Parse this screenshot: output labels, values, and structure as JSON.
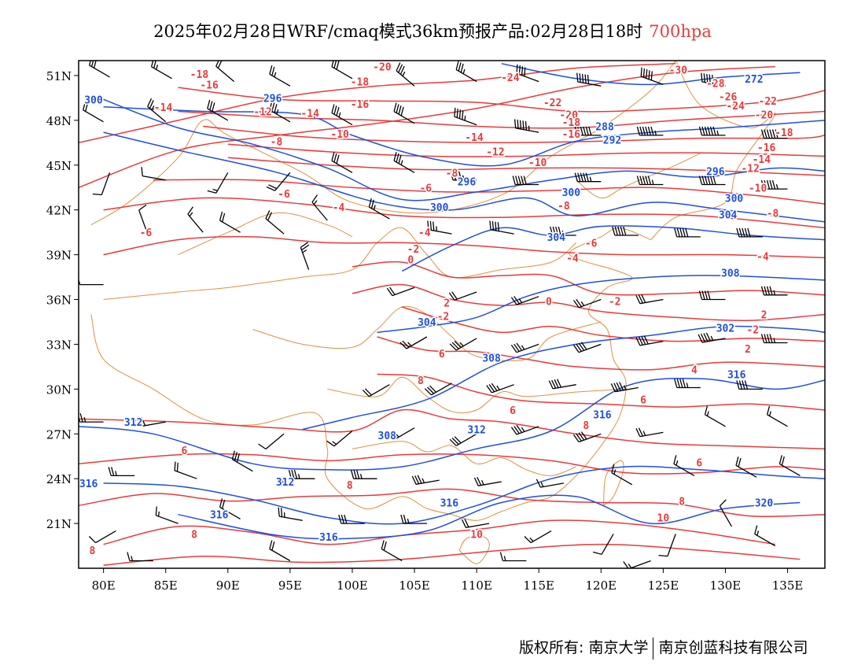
{
  "title": {
    "text": "2025年02月28日WRF/cmaq模式36km预报产品:02月28日18时",
    "level": "700hpa"
  },
  "axes": {
    "lat_labels": [
      "51N",
      "48N",
      "45N",
      "42N",
      "39N",
      "36N",
      "33N",
      "30N",
      "27N",
      "24N",
      "21N"
    ],
    "lat_values": [
      51,
      48,
      45,
      42,
      39,
      36,
      33,
      30,
      27,
      24,
      21
    ],
    "lon_labels": [
      "80E",
      "85E",
      "90E",
      "95E",
      "100E",
      "105E",
      "110E",
      "115E",
      "120E",
      "125E",
      "130E",
      "135E"
    ],
    "lon_values": [
      80,
      85,
      90,
      95,
      100,
      105,
      110,
      115,
      120,
      125,
      130,
      135
    ],
    "lon_range": [
      78,
      138
    ],
    "lat_range": [
      18,
      52
    ]
  },
  "colors": {
    "temperature": "#e83a3a",
    "geopotential_height": "#1f4fe0",
    "boundary": "#e09040",
    "wind": "#000000"
  },
  "chart_data": {
    "type": "contour-map",
    "temperature_contours_C": [
      {
        "label": "-30",
        "lon": 126.2,
        "lat": 51.4
      },
      {
        "label": "-28",
        "lon": 129.2,
        "lat": 50.5
      },
      {
        "label": "-26",
        "lon": 130.2,
        "lat": 49.6
      },
      {
        "label": "-24",
        "lon": 112.7,
        "lat": 50.9
      },
      {
        "label": "-24",
        "lon": 130.8,
        "lat": 49.0
      },
      {
        "label": "-22",
        "lon": 116.1,
        "lat": 49.2
      },
      {
        "label": "-22",
        "lon": 133.4,
        "lat": 49.3
      },
      {
        "label": "-20",
        "lon": 102.4,
        "lat": 51.6
      },
      {
        "label": "-20",
        "lon": 117.4,
        "lat": 48.4
      },
      {
        "label": "-20",
        "lon": 133.1,
        "lat": 48.4
      },
      {
        "label": "-18",
        "lon": 87.7,
        "lat": 51.1
      },
      {
        "label": "-18",
        "lon": 100.6,
        "lat": 50.6
      },
      {
        "label": "-18",
        "lon": 117.6,
        "lat": 47.9
      },
      {
        "label": "-18",
        "lon": 134.7,
        "lat": 47.2
      },
      {
        "label": "-16",
        "lon": 88.5,
        "lat": 50.4
      },
      {
        "label": "-16",
        "lon": 100.6,
        "lat": 49.1
      },
      {
        "label": "-16",
        "lon": 117.6,
        "lat": 47.1
      },
      {
        "label": "-16",
        "lon": 133.3,
        "lat": 46.2
      },
      {
        "label": "-14",
        "lon": 84.8,
        "lat": 48.9
      },
      {
        "label": "-14",
        "lon": 96.6,
        "lat": 48.5
      },
      {
        "label": "-14",
        "lon": 109.8,
        "lat": 46.9
      },
      {
        "label": "-14",
        "lon": 132.9,
        "lat": 45.4
      },
      {
        "label": "-12",
        "lon": 92.8,
        "lat": 48.6
      },
      {
        "label": "-12",
        "lon": 111.5,
        "lat": 45.9
      },
      {
        "label": "-12",
        "lon": 132.0,
        "lat": 44.8
      },
      {
        "label": "-10",
        "lon": 99.0,
        "lat": 47.1
      },
      {
        "label": "-10",
        "lon": 114.9,
        "lat": 45.2
      },
      {
        "label": "-10",
        "lon": 132.6,
        "lat": 43.5
      },
      {
        "label": "-8",
        "lon": 93.9,
        "lat": 46.6
      },
      {
        "label": "-8",
        "lon": 108.0,
        "lat": 44.5
      },
      {
        "label": "-8",
        "lon": 117.0,
        "lat": 42.3
      },
      {
        "label": "-8",
        "lon": 133.8,
        "lat": 41.8
      },
      {
        "label": "-6",
        "lon": 94.5,
        "lat": 43.1
      },
      {
        "label": "-6",
        "lon": 105.9,
        "lat": 43.5
      },
      {
        "label": "-6",
        "lon": 83.4,
        "lat": 40.5
      },
      {
        "label": "-6",
        "lon": 119.2,
        "lat": 39.8
      },
      {
        "label": "-4",
        "lon": 98.9,
        "lat": 42.2
      },
      {
        "label": "-4",
        "lon": 105.8,
        "lat": 40.5
      },
      {
        "label": "-4",
        "lon": 117.7,
        "lat": 38.8
      },
      {
        "label": "-4",
        "lon": 133.0,
        "lat": 38.9
      },
      {
        "label": "-2",
        "lon": 104.9,
        "lat": 39.4
      },
      {
        "label": "-2",
        "lon": 107.3,
        "lat": 34.9
      },
      {
        "label": "-2",
        "lon": 121.1,
        "lat": 35.9
      },
      {
        "label": "-2",
        "lon": 132.2,
        "lat": 34.0
      },
      {
        "label": "0",
        "lon": 104.7,
        "lat": 38.7
      },
      {
        "label": "0",
        "lon": 115.8,
        "lat": 35.9
      },
      {
        "label": "2",
        "lon": 107.6,
        "lat": 35.8
      },
      {
        "label": "2",
        "lon": 133.1,
        "lat": 35.0
      },
      {
        "label": "2",
        "lon": 131.8,
        "lat": 32.7
      },
      {
        "label": "4",
        "lon": 127.5,
        "lat": 31.3
      },
      {
        "label": "6",
        "lon": 107.2,
        "lat": 32.4
      },
      {
        "label": "6",
        "lon": 112.9,
        "lat": 28.6
      },
      {
        "label": "6",
        "lon": 123.4,
        "lat": 29.3
      },
      {
        "label": "6",
        "lon": 86.5,
        "lat": 25.9
      },
      {
        "label": "6",
        "lon": 94.3,
        "lat": 23.8
      },
      {
        "label": "6",
        "lon": 127.9,
        "lat": 25.1
      },
      {
        "label": "8",
        "lon": 105.5,
        "lat": 30.6
      },
      {
        "label": "8",
        "lon": 118.8,
        "lat": 27.6
      },
      {
        "label": "8",
        "lon": 99.8,
        "lat": 23.6
      },
      {
        "label": "8",
        "lon": 126.5,
        "lat": 22.5
      },
      {
        "label": "8",
        "lon": 87.3,
        "lat": 20.3
      },
      {
        "label": "8",
        "lon": 79.1,
        "lat": 19.2
      },
      {
        "label": "10",
        "lon": 125.0,
        "lat": 21.4
      },
      {
        "label": "10",
        "lon": 110.0,
        "lat": 20.3
      }
    ],
    "height_contours_dagpm": [
      {
        "label": "272",
        "lon": 132.3,
        "lat": 50.8
      },
      {
        "label": "288",
        "lon": 120.3,
        "lat": 47.6
      },
      {
        "label": "292",
        "lon": 120.9,
        "lat": 46.7
      },
      {
        "label": "296",
        "lon": 93.6,
        "lat": 49.5
      },
      {
        "label": "296",
        "lon": 109.2,
        "lat": 43.9
      },
      {
        "label": "296",
        "lon": 129.2,
        "lat": 44.6
      },
      {
        "label": "300",
        "lon": 79.2,
        "lat": 49.4
      },
      {
        "label": "300",
        "lon": 107.0,
        "lat": 42.2
      },
      {
        "label": "300",
        "lon": 117.6,
        "lat": 43.2
      },
      {
        "label": "300",
        "lon": 130.7,
        "lat": 42.8
      },
      {
        "label": "304",
        "lon": 116.4,
        "lat": 40.2
      },
      {
        "label": "304",
        "lon": 130.2,
        "lat": 41.7
      },
      {
        "label": "304",
        "lon": 106.0,
        "lat": 34.5
      },
      {
        "label": "308",
        "lon": 130.4,
        "lat": 37.8
      },
      {
        "label": "308",
        "lon": 111.2,
        "lat": 32.1
      },
      {
        "label": "308",
        "lon": 102.8,
        "lat": 26.9
      },
      {
        "label": "312",
        "lon": 82.4,
        "lat": 27.8
      },
      {
        "label": "312",
        "lon": 110.0,
        "lat": 27.3
      },
      {
        "label": "312",
        "lon": 94.6,
        "lat": 23.8
      },
      {
        "label": "316",
        "lon": 130.9,
        "lat": 31.0
      },
      {
        "label": "316",
        "lon": 120.1,
        "lat": 28.3
      },
      {
        "label": "316",
        "lon": 107.8,
        "lat": 22.4
      },
      {
        "label": "316",
        "lon": 89.3,
        "lat": 21.6
      },
      {
        "label": "316",
        "lon": 78.8,
        "lat": 23.7
      },
      {
        "label": "316",
        "lon": 98.1,
        "lat": 20.1
      },
      {
        "label": "320",
        "lon": 133.1,
        "lat": 22.4
      },
      {
        "label": "302",
        "lon": 130.0,
        "lat": 34.1
      }
    ],
    "wind_barbs_ms": [
      {
        "lon": 80.5,
        "lat": 50.9,
        "dir": 300,
        "spd": 12
      },
      {
        "lon": 85.5,
        "lat": 50.8,
        "dir": 300,
        "spd": 10
      },
      {
        "lon": 90.5,
        "lat": 50.6,
        "dir": 310,
        "spd": 8
      },
      {
        "lon": 95.0,
        "lat": 50.3,
        "dir": 300,
        "spd": 10
      },
      {
        "lon": 100.0,
        "lat": 50.8,
        "dir": 300,
        "spd": 12
      },
      {
        "lon": 105.0,
        "lat": 50.3,
        "dir": 310,
        "spd": 14
      },
      {
        "lon": 110.0,
        "lat": 50.6,
        "dir": 300,
        "spd": 14
      },
      {
        "lon": 115.0,
        "lat": 50.6,
        "dir": 290,
        "spd": 16
      },
      {
        "lon": 120.0,
        "lat": 50.3,
        "dir": 280,
        "spd": 20
      },
      {
        "lon": 125.0,
        "lat": 50.4,
        "dir": 290,
        "spd": 20
      },
      {
        "lon": 130.0,
        "lat": 50.3,
        "dir": 280,
        "spd": 22
      },
      {
        "lon": 80.0,
        "lat": 47.9,
        "dir": 300,
        "spd": 8
      },
      {
        "lon": 85.0,
        "lat": 47.9,
        "dir": 310,
        "spd": 10
      },
      {
        "lon": 90.0,
        "lat": 48.0,
        "dir": 300,
        "spd": 12
      },
      {
        "lon": 95.0,
        "lat": 47.9,
        "dir": 300,
        "spd": 14
      },
      {
        "lon": 100.0,
        "lat": 47.7,
        "dir": 300,
        "spd": 14
      },
      {
        "lon": 105.0,
        "lat": 47.8,
        "dir": 300,
        "spd": 16
      },
      {
        "lon": 110.0,
        "lat": 47.7,
        "dir": 290,
        "spd": 18
      },
      {
        "lon": 115.0,
        "lat": 47.2,
        "dir": 280,
        "spd": 22
      },
      {
        "lon": 120.0,
        "lat": 47.0,
        "dir": 270,
        "spd": 24
      },
      {
        "lon": 125.0,
        "lat": 47.0,
        "dir": 270,
        "spd": 26
      },
      {
        "lon": 130.0,
        "lat": 47.0,
        "dir": 270,
        "spd": 26
      },
      {
        "lon": 135.0,
        "lat": 46.8,
        "dir": 270,
        "spd": 24
      },
      {
        "lon": 80.5,
        "lat": 44.5,
        "dir": 200,
        "spd": 4
      },
      {
        "lon": 85.0,
        "lat": 44.0,
        "dir": 280,
        "spd": 4
      },
      {
        "lon": 90.0,
        "lat": 44.5,
        "dir": 210,
        "spd": 6
      },
      {
        "lon": 95.0,
        "lat": 44.5,
        "dir": 220,
        "spd": 8
      },
      {
        "lon": 100.0,
        "lat": 44.5,
        "dir": 300,
        "spd": 12
      },
      {
        "lon": 105.0,
        "lat": 44.5,
        "dir": 300,
        "spd": 14
      },
      {
        "lon": 110.0,
        "lat": 44.0,
        "dir": 270,
        "spd": 18
      },
      {
        "lon": 115.0,
        "lat": 43.7,
        "dir": 270,
        "spd": 20
      },
      {
        "lon": 120.0,
        "lat": 43.9,
        "dir": 270,
        "spd": 22
      },
      {
        "lon": 125.0,
        "lat": 43.7,
        "dir": 270,
        "spd": 22
      },
      {
        "lon": 130.0,
        "lat": 43.7,
        "dir": 270,
        "spd": 24
      },
      {
        "lon": 135.0,
        "lat": 43.4,
        "dir": 270,
        "spd": 22
      },
      {
        "lon": 83.5,
        "lat": 40.5,
        "dir": 340,
        "spd": 4
      },
      {
        "lon": 88.0,
        "lat": 40.5,
        "dir": 320,
        "spd": 6
      },
      {
        "lon": 91.0,
        "lat": 40.5,
        "dir": 300,
        "spd": 8
      },
      {
        "lon": 94.5,
        "lat": 40.4,
        "dir": 310,
        "spd": 8
      },
      {
        "lon": 98.0,
        "lat": 41.3,
        "dir": 320,
        "spd": 6
      },
      {
        "lon": 103.0,
        "lat": 41.4,
        "dir": 300,
        "spd": 10
      },
      {
        "lon": 108.0,
        "lat": 40.4,
        "dir": 280,
        "spd": 14
      },
      {
        "lon": 113.0,
        "lat": 40.4,
        "dir": 280,
        "spd": 16
      },
      {
        "lon": 118.0,
        "lat": 40.3,
        "dir": 270,
        "spd": 18
      },
      {
        "lon": 123.0,
        "lat": 40.3,
        "dir": 270,
        "spd": 20
      },
      {
        "lon": 128.0,
        "lat": 40.2,
        "dir": 270,
        "spd": 20
      },
      {
        "lon": 133.0,
        "lat": 40.2,
        "dir": 270,
        "spd": 20
      },
      {
        "lon": 80.0,
        "lat": 37.0,
        "dir": 270,
        "spd": 4
      },
      {
        "lon": 96.5,
        "lat": 38.0,
        "dir": 340,
        "spd": 10
      },
      {
        "lon": 105.0,
        "lat": 36.8,
        "dir": 250,
        "spd": 8
      },
      {
        "lon": 110.0,
        "lat": 36.5,
        "dir": 250,
        "spd": 8
      },
      {
        "lon": 115.0,
        "lat": 36.2,
        "dir": 250,
        "spd": 10
      },
      {
        "lon": 120.0,
        "lat": 36.0,
        "dir": 250,
        "spd": 10
      },
      {
        "lon": 125.0,
        "lat": 36.0,
        "dir": 260,
        "spd": 12
      },
      {
        "lon": 130.0,
        "lat": 36.0,
        "dir": 270,
        "spd": 16
      },
      {
        "lon": 135.0,
        "lat": 36.3,
        "dir": 270,
        "spd": 18
      },
      {
        "lon": 106.0,
        "lat": 33.5,
        "dir": 240,
        "spd": 10
      },
      {
        "lon": 110.0,
        "lat": 33.4,
        "dir": 240,
        "spd": 14
      },
      {
        "lon": 115.0,
        "lat": 33.0,
        "dir": 250,
        "spd": 14
      },
      {
        "lon": 120.0,
        "lat": 33.0,
        "dir": 250,
        "spd": 16
      },
      {
        "lon": 125.0,
        "lat": 33.2,
        "dir": 260,
        "spd": 16
      },
      {
        "lon": 130.0,
        "lat": 33.4,
        "dir": 260,
        "spd": 18
      },
      {
        "lon": 135.0,
        "lat": 33.1,
        "dir": 270,
        "spd": 18
      },
      {
        "lon": 103.0,
        "lat": 30.3,
        "dir": 240,
        "spd": 8
      },
      {
        "lon": 108.0,
        "lat": 30.4,
        "dir": 240,
        "spd": 12
      },
      {
        "lon": 113.0,
        "lat": 30.3,
        "dir": 250,
        "spd": 14
      },
      {
        "lon": 118.0,
        "lat": 30.3,
        "dir": 260,
        "spd": 16
      },
      {
        "lon": 123.0,
        "lat": 30.1,
        "dir": 260,
        "spd": 18
      },
      {
        "lon": 128.0,
        "lat": 30.1,
        "dir": 270,
        "spd": 18
      },
      {
        "lon": 133.0,
        "lat": 30.0,
        "dir": 270,
        "spd": 16
      },
      {
        "lon": 80.0,
        "lat": 27.8,
        "dir": 270,
        "spd": 10
      },
      {
        "lon": 85.0,
        "lat": 27.8,
        "dir": 260,
        "spd": 8
      },
      {
        "lon": 94.5,
        "lat": 27.0,
        "dir": 230,
        "spd": 4
      },
      {
        "lon": 100.0,
        "lat": 27.2,
        "dir": 230,
        "spd": 6
      },
      {
        "lon": 105.0,
        "lat": 27.4,
        "dir": 240,
        "spd": 10
      },
      {
        "lon": 110.0,
        "lat": 27.0,
        "dir": 240,
        "spd": 12
      },
      {
        "lon": 115.0,
        "lat": 27.5,
        "dir": 250,
        "spd": 14
      },
      {
        "lon": 120.0,
        "lat": 27.0,
        "dir": 250,
        "spd": 16
      },
      {
        "lon": 125.0,
        "lat": 27.1,
        "dir": 260,
        "spd": 10
      },
      {
        "lon": 130.0,
        "lat": 27.5,
        "dir": 300,
        "spd": 6
      },
      {
        "lon": 135.0,
        "lat": 27.5,
        "dir": 300,
        "spd": 6
      },
      {
        "lon": 82.5,
        "lat": 24.2,
        "dir": 270,
        "spd": 10
      },
      {
        "lon": 87.5,
        "lat": 24.0,
        "dir": 290,
        "spd": 8
      },
      {
        "lon": 92.0,
        "lat": 24.5,
        "dir": 300,
        "spd": 12
      },
      {
        "lon": 97.0,
        "lat": 24.0,
        "dir": 270,
        "spd": 14
      },
      {
        "lon": 102.0,
        "lat": 24.0,
        "dir": 270,
        "spd": 14
      },
      {
        "lon": 107.0,
        "lat": 23.9,
        "dir": 260,
        "spd": 14
      },
      {
        "lon": 112.0,
        "lat": 23.8,
        "dir": 260,
        "spd": 10
      },
      {
        "lon": 117.0,
        "lat": 23.7,
        "dir": 260,
        "spd": 6
      },
      {
        "lon": 122.5,
        "lat": 23.6,
        "dir": 300,
        "spd": 6
      },
      {
        "lon": 127.5,
        "lat": 24.2,
        "dir": 300,
        "spd": 6
      },
      {
        "lon": 132.5,
        "lat": 24.1,
        "dir": 300,
        "spd": 8
      },
      {
        "lon": 136.0,
        "lat": 24.2,
        "dir": 300,
        "spd": 8
      },
      {
        "lon": 81.0,
        "lat": 20.5,
        "dir": 240,
        "spd": 4
      },
      {
        "lon": 86.0,
        "lat": 21.0,
        "dir": 290,
        "spd": 6
      },
      {
        "lon": 91.0,
        "lat": 21.3,
        "dir": 300,
        "spd": 8
      },
      {
        "lon": 96.0,
        "lat": 21.2,
        "dir": 280,
        "spd": 10
      },
      {
        "lon": 101.0,
        "lat": 21.0,
        "dir": 270,
        "spd": 12
      },
      {
        "lon": 106.0,
        "lat": 21.0,
        "dir": 270,
        "spd": 10
      },
      {
        "lon": 111.0,
        "lat": 21.0,
        "dir": 260,
        "spd": 8
      },
      {
        "lon": 116.0,
        "lat": 20.5,
        "dir": 240,
        "spd": 6
      },
      {
        "lon": 121.0,
        "lat": 20.3,
        "dir": 210,
        "spd": 4
      },
      {
        "lon": 126.0,
        "lat": 20.3,
        "dir": 200,
        "spd": 4
      },
      {
        "lon": 130.5,
        "lat": 20.8,
        "dir": 330,
        "spd": 4
      },
      {
        "lon": 134.0,
        "lat": 19.5,
        "dir": 300,
        "spd": 6
      },
      {
        "lon": 84.0,
        "lat": 18.5,
        "dir": 270,
        "spd": 6
      },
      {
        "lon": 95.0,
        "lat": 18.5,
        "dir": 300,
        "spd": 8
      },
      {
        "lon": 104.0,
        "lat": 18.5,
        "dir": 300,
        "spd": 8
      },
      {
        "lon": 114.0,
        "lat": 18.5,
        "dir": 270,
        "spd": 6
      },
      {
        "lon": 124.0,
        "lat": 18.5,
        "dir": 250,
        "spd": 6
      }
    ]
  },
  "footer": {
    "left": "版权所有: 南京大学",
    "right": "南京创蓝科技有限公司"
  }
}
